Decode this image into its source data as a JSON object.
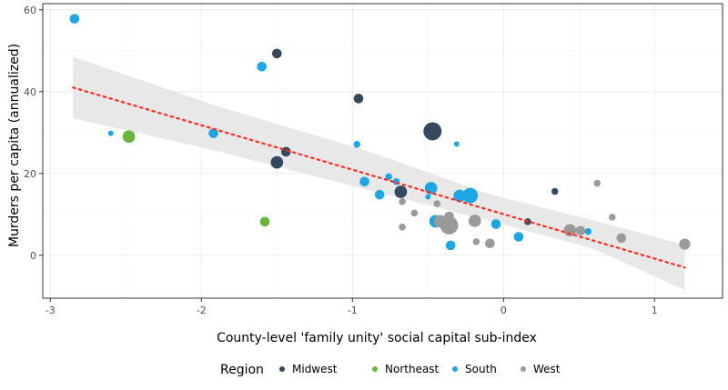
{
  "chart_data": {
    "type": "scatter",
    "xlabel": "County-level 'family unity' social capital sub-index",
    "ylabel": "Murders per capita (annualized)",
    "xlim": [
      -3.05,
      1.45
    ],
    "ylim": [
      -10.5,
      61.5
    ],
    "x_ticks": [
      -3,
      -2,
      -1,
      0,
      1
    ],
    "x_tick_labels": [
      "-3",
      "-2",
      "-1",
      "0",
      "1"
    ],
    "y_ticks": [
      0,
      20,
      40,
      60
    ],
    "y_tick_labels": [
      "0",
      "20",
      "40",
      "60"
    ],
    "grid": true,
    "legend": {
      "title": "Region",
      "position": "bottom",
      "entries": [
        {
          "name": "Midwest",
          "color": "#34495e"
        },
        {
          "name": "Northeast",
          "color": "#6ab43e"
        },
        {
          "name": "South",
          "color": "#1ea6e4"
        },
        {
          "name": "West",
          "color": "#9a9a9a"
        }
      ]
    },
    "trend_line": {
      "style": "dotted",
      "color": "#ff2a1a",
      "x": [
        -2.85,
        1.2
      ],
      "y": [
        41,
        -3
      ],
      "confidence_band": {
        "color": "#e6e6e6",
        "x": [
          -2.85,
          -1.9,
          -0.9,
          -0.1,
          0.6,
          1.2
        ],
        "lower": [
          33.5,
          25.5,
          16,
          8.5,
          1.5,
          -8.5
        ],
        "upper": [
          48.5,
          36.5,
          25.5,
          15,
          8.5,
          2.5
        ]
      }
    },
    "series": [
      {
        "name": "Midwest",
        "color": "#34495e",
        "points": [
          {
            "x": -1.5,
            "y": 49.3,
            "size": 2
          },
          {
            "x": -0.96,
            "y": 38.3,
            "size": 2
          },
          {
            "x": -0.47,
            "y": 30.3,
            "size": 5
          },
          {
            "x": -1.44,
            "y": 25.3,
            "size": 2
          },
          {
            "x": -1.5,
            "y": 22.7,
            "size": 3
          },
          {
            "x": -0.68,
            "y": 15.5,
            "size": 3
          },
          {
            "x": 0.34,
            "y": 15.6,
            "size": 1
          },
          {
            "x": 0.16,
            "y": 8.2,
            "size": 1
          },
          {
            "x": 0.45,
            "y": 6.4,
            "size": 1
          }
        ]
      },
      {
        "name": "Northeast",
        "color": "#6ab43e",
        "points": [
          {
            "x": -2.48,
            "y": 29,
            "size": 3
          },
          {
            "x": -1.58,
            "y": 8.2,
            "size": 2
          }
        ]
      },
      {
        "name": "South",
        "color": "#1ea6e4",
        "points": [
          {
            "x": -2.84,
            "y": 57.8,
            "size": 2
          },
          {
            "x": -1.6,
            "y": 46.1,
            "size": 2
          },
          {
            "x": -2.6,
            "y": 29.8,
            "size": 0.5
          },
          {
            "x": -1.92,
            "y": 29.8,
            "size": 2
          },
          {
            "x": -0.97,
            "y": 27.1,
            "size": 1
          },
          {
            "x": -0.31,
            "y": 27.2,
            "size": 0.5
          },
          {
            "x": -0.92,
            "y": 18,
            "size": 2
          },
          {
            "x": -0.76,
            "y": 19.2,
            "size": 1
          },
          {
            "x": -0.82,
            "y": 14.8,
            "size": 2
          },
          {
            "x": -0.71,
            "y": 18,
            "size": 1
          },
          {
            "x": -0.5,
            "y": 14.3,
            "size": 0.5
          },
          {
            "x": -0.48,
            "y": 16.4,
            "size": 3
          },
          {
            "x": -0.29,
            "y": 14.5,
            "size": 3
          },
          {
            "x": -0.22,
            "y": 14.6,
            "size": 4
          },
          {
            "x": -0.45,
            "y": 8.3,
            "size": 3
          },
          {
            "x": -0.38,
            "y": 6.3,
            "size": 1
          },
          {
            "x": -0.35,
            "y": 2.4,
            "size": 2
          },
          {
            "x": -0.05,
            "y": 7.6,
            "size": 2
          },
          {
            "x": 0.1,
            "y": 4.5,
            "size": 2
          },
          {
            "x": 0.56,
            "y": 5.8,
            "size": 1
          }
        ]
      },
      {
        "name": "West",
        "color": "#9a9a9a",
        "points": [
          {
            "x": -0.67,
            "y": 13.1,
            "size": 1
          },
          {
            "x": -0.59,
            "y": 10.3,
            "size": 1
          },
          {
            "x": -0.44,
            "y": 12.6,
            "size": 1
          },
          {
            "x": -0.67,
            "y": 6.9,
            "size": 1
          },
          {
            "x": -0.42,
            "y": 8.3,
            "size": 3
          },
          {
            "x": -0.36,
            "y": 9.5,
            "size": 2
          },
          {
            "x": -0.36,
            "y": 7.3,
            "size": 5
          },
          {
            "x": -0.18,
            "y": 3.3,
            "size": 1
          },
          {
            "x": -0.19,
            "y": 8.4,
            "size": 3
          },
          {
            "x": -0.09,
            "y": 2.9,
            "size": 2
          },
          {
            "x": 0.44,
            "y": 6.1,
            "size": 3
          },
          {
            "x": 0.51,
            "y": 6,
            "size": 2
          },
          {
            "x": 0.62,
            "y": 17.6,
            "size": 1
          },
          {
            "x": 0.72,
            "y": 9.3,
            "size": 1
          },
          {
            "x": 0.78,
            "y": 4.2,
            "size": 2
          },
          {
            "x": 1.2,
            "y": 2.7,
            "size": 2.5
          }
        ]
      }
    ]
  }
}
